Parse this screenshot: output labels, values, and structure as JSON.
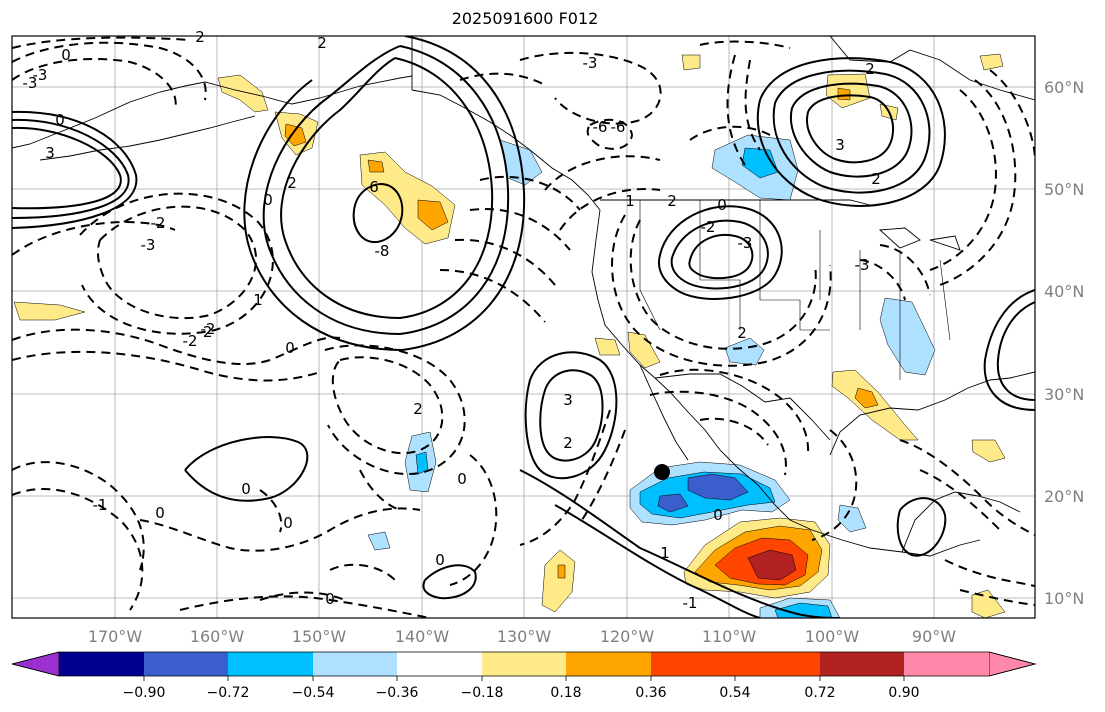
{
  "title": "2025091600 F012",
  "map": {
    "lon_ticks": [
      "170°W",
      "160°W",
      "150°W",
      "140°W",
      "130°W",
      "120°W",
      "110°W",
      "100°W",
      "90°W"
    ],
    "lat_ticks": [
      "60°N",
      "50°N",
      "40°N",
      "30°N",
      "20°N",
      "10°N"
    ],
    "contour_labels": [
      "-3",
      "0",
      "-3",
      "2",
      "0",
      "3",
      "2",
      "0",
      "-6",
      "-2",
      "6",
      "-8",
      "-3",
      "-2",
      "2",
      "-3",
      "1",
      "-2",
      "0",
      "-2",
      "2",
      "2",
      "0",
      "0",
      "0",
      "0",
      "1",
      "-1",
      "0",
      "-1",
      "3",
      "-6",
      "2",
      "-3",
      "-2",
      "0",
      "2",
      "3",
      "0",
      "0",
      "2",
      "2",
      "-3",
      "1"
    ],
    "marker": "storm-center"
  },
  "colorbar": {
    "labels": [
      "−0.90",
      "−0.72",
      "−0.54",
      "−0.36",
      "−0.18",
      "0.18",
      "0.36",
      "0.54",
      "0.72",
      "0.90"
    ],
    "colors": [
      "#9b30d0",
      "#000090",
      "#3a5fcd",
      "#00bfff",
      "#aee0ff",
      "#ffffff",
      "#ffea8a",
      "#ffa500",
      "#ff4500",
      "#b22222",
      "#ff88aa"
    ]
  }
}
